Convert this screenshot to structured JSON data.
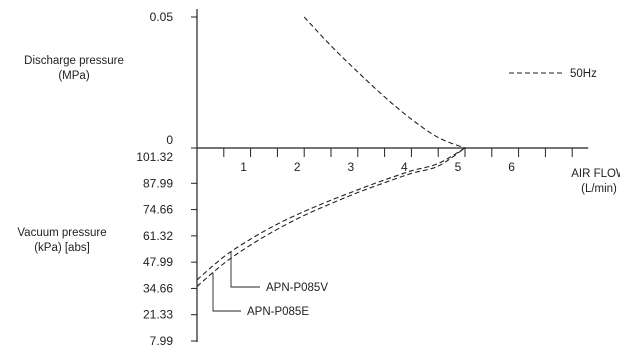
{
  "chart_data": {
    "type": "line",
    "upper_axis": {
      "label_line1": "Discharge pressure",
      "label_line2": "(MPa)",
      "ticks": [
        "0.05",
        "0"
      ],
      "tick_values": [
        0.05,
        0
      ]
    },
    "lower_axis": {
      "label_line1": "Vacuum pressure",
      "label_line2": "(kPa) [abs]",
      "ticks": [
        "101.32",
        "87.99",
        "74.66",
        "61.32",
        "47.99",
        "34.66",
        "21.33",
        "7.99"
      ],
      "tick_values": [
        101.32,
        87.99,
        74.66,
        61.32,
        47.99,
        34.66,
        21.33,
        7.99
      ]
    },
    "x_axis": {
      "label_line1": "AIR FLOW",
      "label_line2": "(L/min)",
      "ticks": [
        "1",
        "2",
        "3",
        "4",
        "5",
        "6"
      ],
      "tick_values": [
        1,
        2,
        3,
        4,
        5,
        6
      ],
      "xlim": [
        0,
        7.3
      ]
    },
    "legend": {
      "label": "50Hz",
      "line_style": "dashed",
      "position": "right"
    },
    "series": [
      {
        "name": "50Hz",
        "region": "discharge",
        "points": [
          [
            2.0,
            0.05
          ],
          [
            2.5,
            0.039
          ],
          [
            3.0,
            0.029
          ],
          [
            3.5,
            0.0195
          ],
          [
            4.0,
            0.011
          ],
          [
            4.5,
            0.004
          ],
          [
            5.0,
            0
          ]
        ]
      },
      {
        "name": "APN-P085V",
        "region": "vacuum",
        "points": [
          [
            0,
            39.0
          ],
          [
            0.5,
            50.7
          ],
          [
            1.0,
            59.7
          ],
          [
            1.5,
            67.3
          ],
          [
            2.0,
            73.7
          ],
          [
            2.5,
            79.4
          ],
          [
            3.0,
            84.7
          ],
          [
            3.5,
            89.7
          ],
          [
            4.0,
            94.3
          ],
          [
            4.5,
            98.0
          ],
          [
            5.0,
            101.32
          ]
        ]
      },
      {
        "name": "APN-P085E",
        "region": "vacuum",
        "points": [
          [
            0,
            35.7
          ],
          [
            0.5,
            47.3
          ],
          [
            1.0,
            56.7
          ],
          [
            1.5,
            64.7
          ],
          [
            2.0,
            71.7
          ],
          [
            2.5,
            77.7
          ],
          [
            3.0,
            83.3
          ],
          [
            3.5,
            88.3
          ],
          [
            4.0,
            93.0
          ],
          [
            4.5,
            96.7
          ],
          [
            5.0,
            101.32
          ]
        ]
      }
    ],
    "annotations": [
      "APN-P085V",
      "APN-P085E"
    ]
  }
}
